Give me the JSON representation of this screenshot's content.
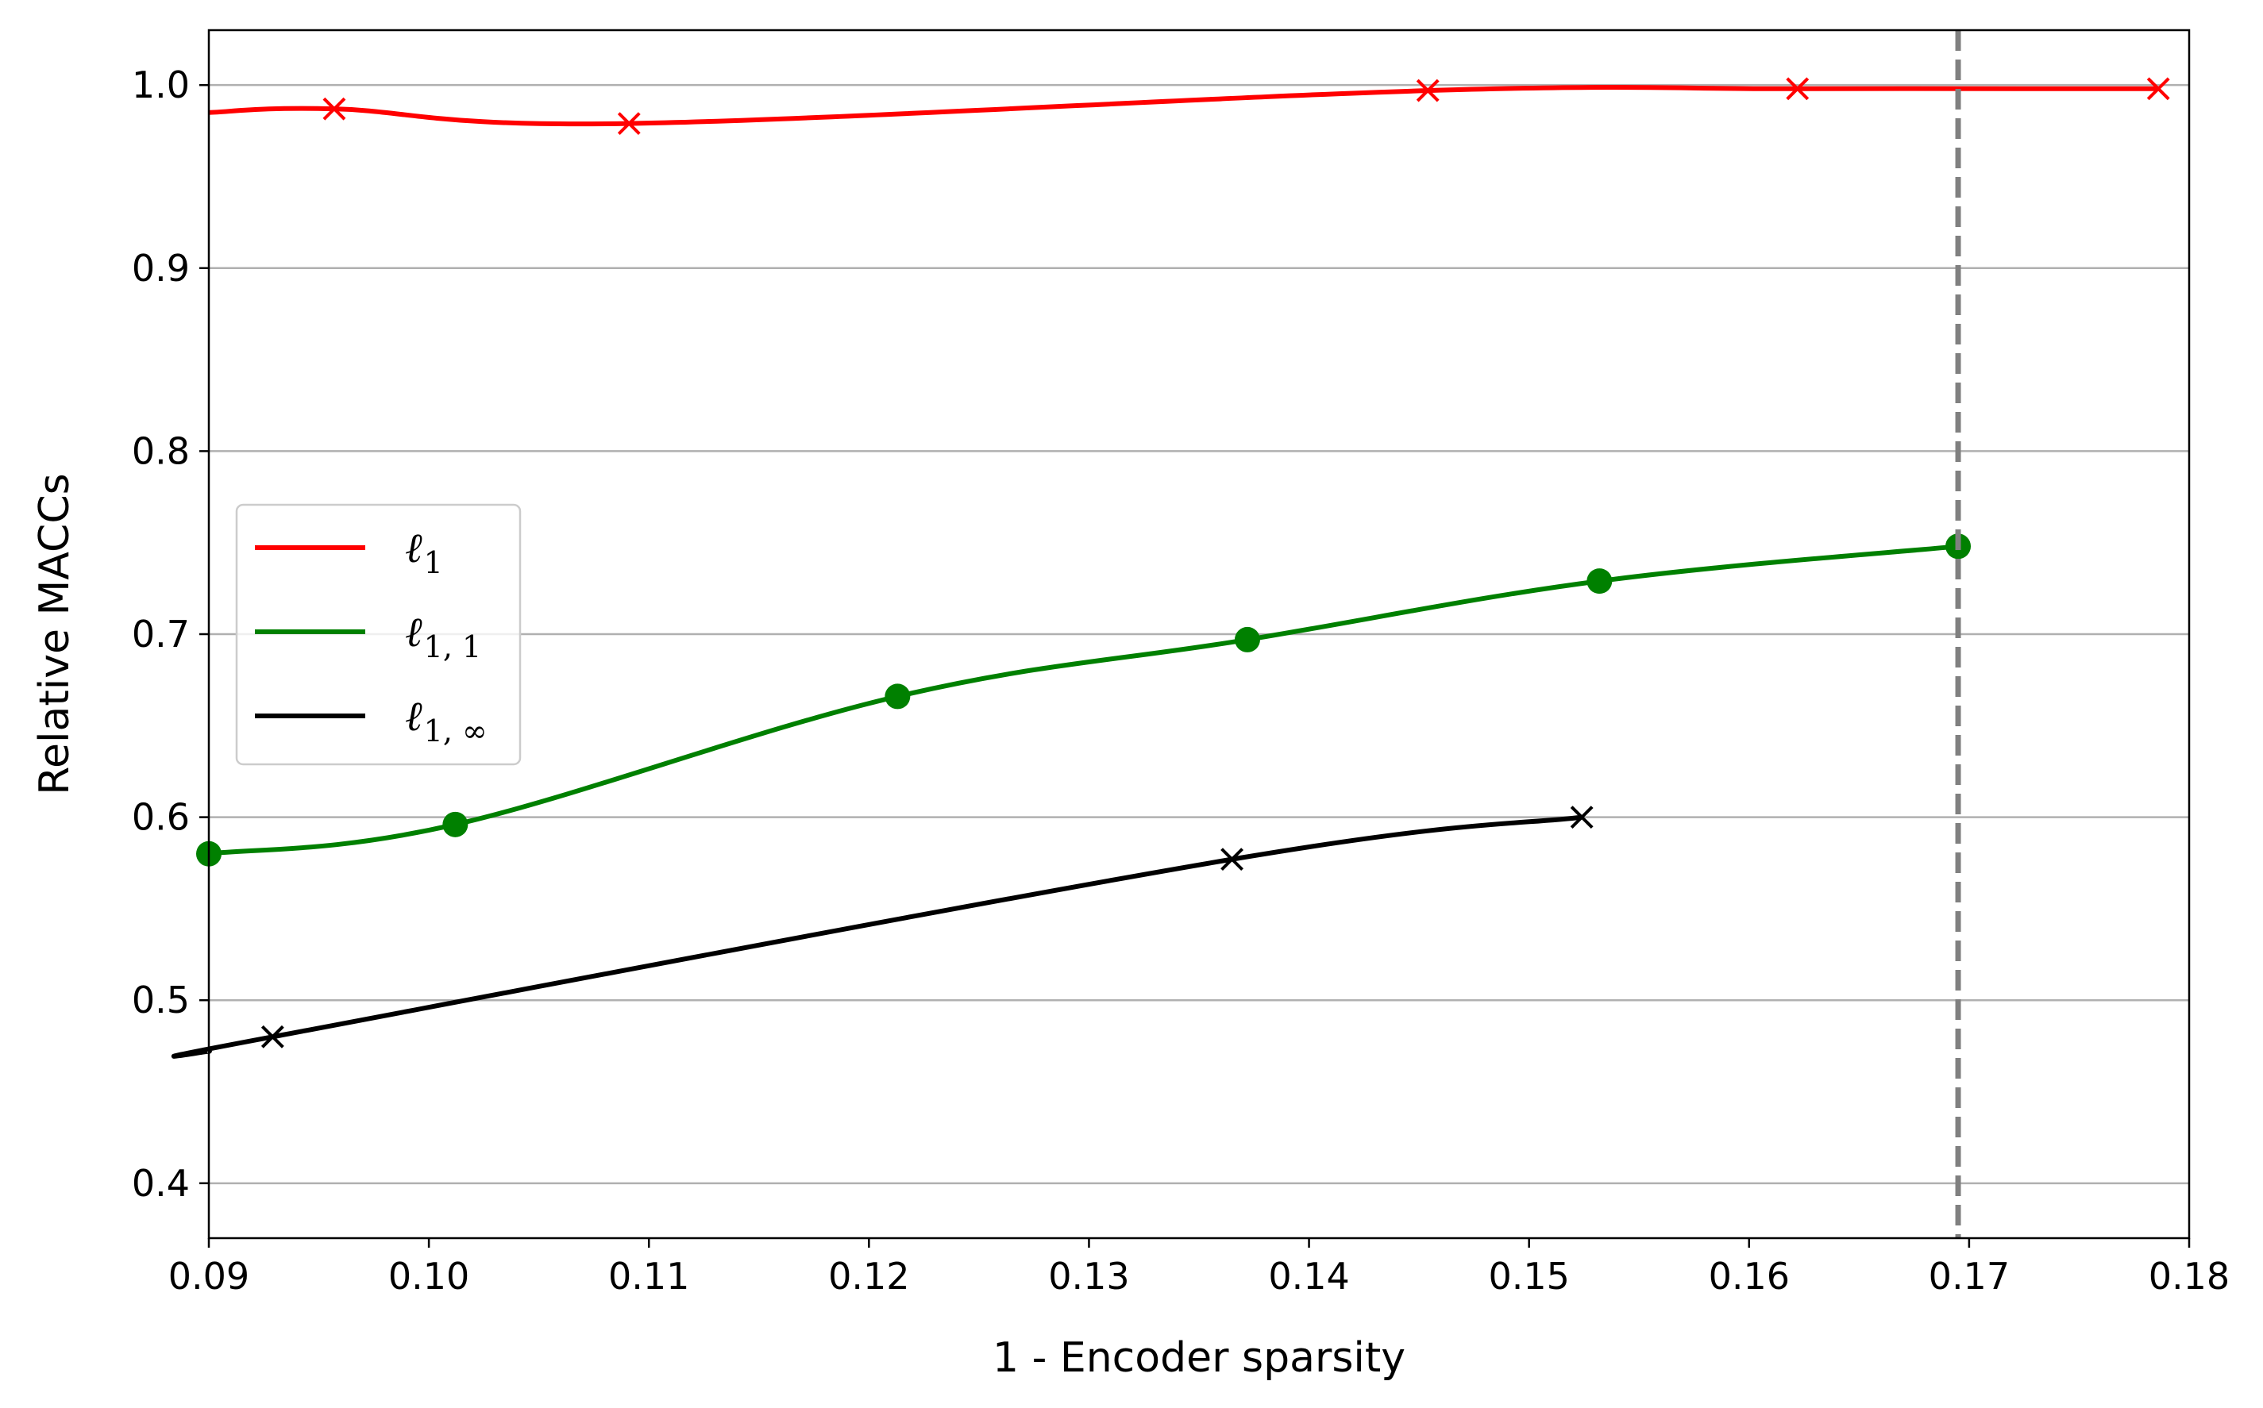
{
  "chart_data": {
    "type": "line",
    "title": "",
    "xlabel": "1 - Encoder sparsity",
    "ylabel": "Relative MACCs",
    "xlim": [
      0.09,
      0.18
    ],
    "ylim": [
      0.37,
      1.03
    ],
    "xticks": [
      "0.09",
      "0.10",
      "0.11",
      "0.12",
      "0.13",
      "0.14",
      "0.15",
      "0.16",
      "0.17",
      "0.18"
    ],
    "yticks": [
      "0.4",
      "0.5",
      "0.6",
      "0.7",
      "0.8",
      "0.9",
      "1.0"
    ],
    "grid": "horizontal",
    "legend_position": "center-left",
    "reference_line": {
      "x": 0.1695,
      "style": "dashed",
      "color": "#808080"
    },
    "series": [
      {
        "name": "ℓ1",
        "base": "ℓ",
        "subscript": "1",
        "color": "#ff0000",
        "marker": "x",
        "curve_start": {
          "x": 0.09,
          "y": 0.985
        },
        "x": [
          0.0957,
          0.1091,
          0.1454,
          0.1622,
          0.1786
        ],
        "y": [
          0.987,
          0.979,
          0.997,
          0.998,
          0.998
        ]
      },
      {
        "name": "ℓ1,1",
        "base": "ℓ",
        "subscript": "1, 1",
        "color": "#008000",
        "marker": "o",
        "curve_start": null,
        "x": [
          0.09,
          0.1012,
          0.1213,
          0.1372,
          0.1532,
          0.1695
        ],
        "y": [
          0.58,
          0.596,
          0.666,
          0.697,
          0.729,
          0.748
        ]
      },
      {
        "name": "ℓ1,∞",
        "base": "ℓ",
        "subscript": "1, ∞",
        "color": "#000000",
        "marker": "x",
        "curve_start": {
          "x": 0.09,
          "y": 0.472
        },
        "x": [
          0.0929,
          0.1365,
          0.1524
        ],
        "y": [
          0.48,
          0.577,
          0.6
        ]
      }
    ]
  }
}
